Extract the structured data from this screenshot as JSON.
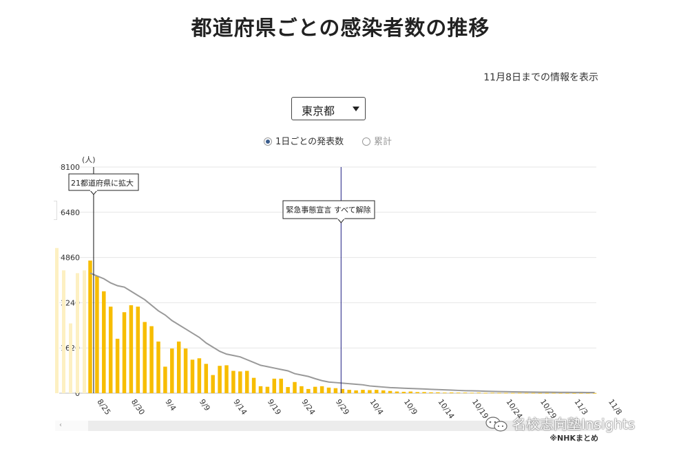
{
  "page": {
    "title": "都道府県ごとの感染者数の推移",
    "update_note": "11月8日までの情報を表示",
    "source_note": "※NHKまとめ",
    "watermark": "名校志向塾Insights"
  },
  "prefecture_select": {
    "value": "東京都"
  },
  "mode_radios": [
    {
      "label": "1日ごとの発表数",
      "selected": true
    },
    {
      "label": "累計",
      "selected": false
    }
  ],
  "colors": {
    "bar": "#f7bd00",
    "bar_faded": "#fdf0c2",
    "line": "#999999",
    "event_line": "#1a1a80",
    "grid": "#e6e6e6"
  },
  "chart_data": {
    "type": "bar",
    "ylabel": "(人)",
    "ylim": [
      0,
      8100
    ],
    "yticks": [
      0,
      1620,
      3240,
      4860,
      6480,
      8100
    ],
    "x_ticks": [
      "8/25",
      "8/30",
      "9/4",
      "9/9",
      "9/14",
      "9/19",
      "9/24",
      "9/29",
      "10/4",
      "10/9",
      "10/14",
      "10/19",
      "10/24",
      "10/29",
      "11/3",
      "11/8"
    ],
    "faded_values": [
      5200,
      4400,
      2500,
      4300,
      4400
    ],
    "series": [
      {
        "type": "bar",
        "x_start": "8/24",
        "values": [
          4750,
          4200,
          3650,
          3100,
          1950,
          2900,
          3150,
          3100,
          2550,
          2400,
          1850,
          950,
          1600,
          1850,
          1600,
          1200,
          1250,
          1050,
          650,
          980,
          1000,
          800,
          780,
          800,
          550,
          250,
          230,
          520,
          520,
          220,
          400,
          250,
          150,
          230,
          250,
          200,
          180,
          150,
          120,
          100,
          120,
          110,
          120,
          100,
          80,
          60,
          50,
          60,
          40,
          40,
          30,
          30,
          20,
          25,
          20,
          20,
          15,
          20,
          10,
          15,
          10,
          10,
          8,
          10,
          8,
          8,
          6,
          6,
          8,
          6,
          5,
          4,
          6,
          5,
          4,
          3,
          4
        ]
      },
      {
        "type": "line",
        "x_start": "8/24",
        "values": [
          4300,
          4200,
          4100,
          3950,
          3850,
          3800,
          3650,
          3500,
          3350,
          3150,
          2950,
          2800,
          2600,
          2450,
          2300,
          2150,
          2000,
          1800,
          1650,
          1500,
          1400,
          1350,
          1300,
          1200,
          1100,
          1000,
          950,
          900,
          850,
          800,
          700,
          650,
          600,
          520,
          450,
          400,
          380,
          360,
          340,
          320,
          300,
          260,
          240,
          220,
          200,
          190,
          180,
          170,
          160,
          150,
          140,
          130,
          120,
          110,
          100,
          90,
          85,
          80,
          70,
          65,
          60,
          55,
          50,
          45,
          42,
          40,
          38,
          36,
          34,
          32,
          30,
          28,
          27,
          26,
          25,
          24,
          23
        ]
      }
    ],
    "annotations": [
      {
        "label": "21都道府県に拡大",
        "x_index": 0.5
      },
      {
        "label": "緊急事態宣言 すべて解除",
        "x_index": 36.8
      }
    ]
  }
}
